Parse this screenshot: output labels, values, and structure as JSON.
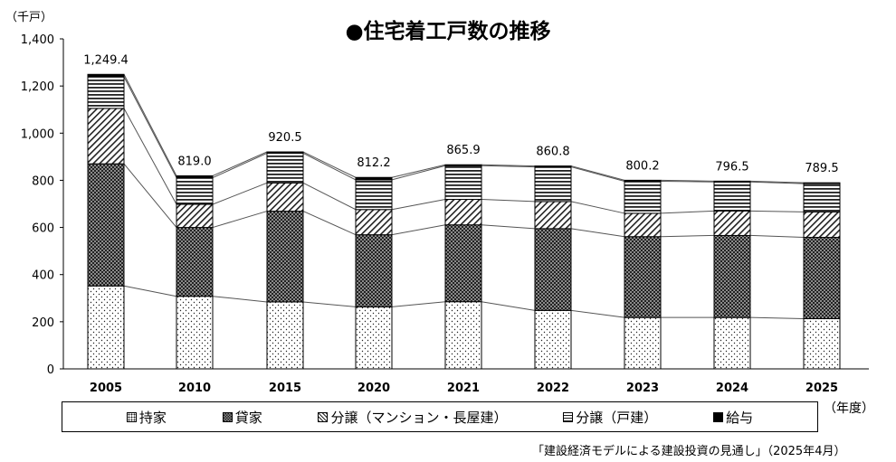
{
  "chart_data": {
    "type": "bar",
    "stacked": true,
    "title": "●住宅着工戸数の推移",
    "ylabel": "（千戸）",
    "xlabel": "（年度）",
    "ylim": [
      0,
      1400
    ],
    "yticks": [
      "0",
      "200",
      "400",
      "600",
      "800",
      "1,000",
      "1,200",
      "1,400"
    ],
    "categories": [
      "2005",
      "2010",
      "2015",
      "2020",
      "2021",
      "2022",
      "2023",
      "2024",
      "2025"
    ],
    "totals": [
      "1,249.4",
      "819.0",
      "920.5",
      "812.2",
      "865.9",
      "860.8",
      "800.2",
      "796.5",
      "789.5"
    ],
    "series": [
      {
        "name": "持家",
        "color": "#ffffff",
        "pattern": "dots",
        "values": [
          352,
          308,
          284,
          263,
          285,
          248,
          218,
          218,
          213
        ]
      },
      {
        "name": "貸家",
        "color": "#555555",
        "pattern": "checker",
        "values": [
          518,
          292,
          385,
          306,
          326,
          347,
          343,
          348,
          345
        ]
      },
      {
        "name": "分譲（マンション・長屋建）",
        "color": "#ffffff",
        "pattern": "diagonal",
        "values": [
          235,
          98,
          120,
          107,
          108,
          115,
          99,
          104,
          108
        ]
      },
      {
        "name": "分譲（戸建）",
        "color": "#ffffff",
        "pattern": "hlines",
        "values": [
          134,
          113,
          126,
          126,
          143,
          147,
          136,
          123,
          120
        ]
      },
      {
        "name": "給与",
        "color": "#000000",
        "pattern": "solid",
        "values": [
          10.4,
          8.0,
          5.5,
          10.2,
          3.9,
          3.8,
          4.2,
          3.5,
          3.5
        ]
      }
    ],
    "grid": false,
    "legend_position": "bottom"
  },
  "source": "「建設経済モデルによる建設投資の見通し」（2025年4月）"
}
